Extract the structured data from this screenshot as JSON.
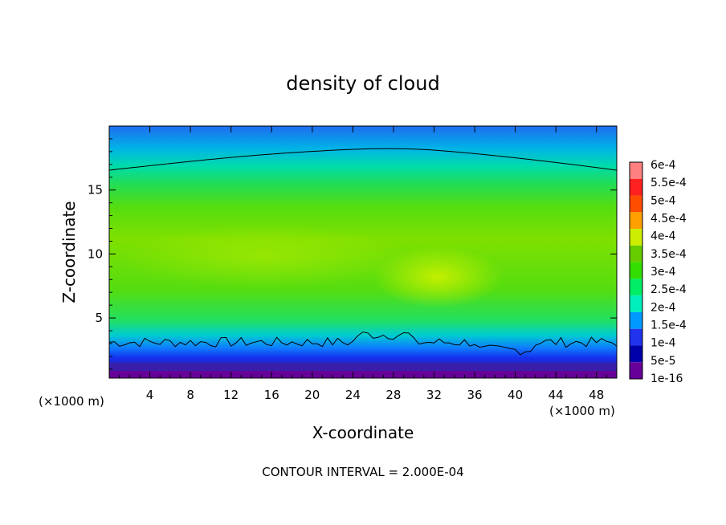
{
  "chart_data": {
    "type": "heatmap",
    "title": "density of cloud",
    "xlabel": "X-coordinate",
    "ylabel": "Z-coordinate",
    "x_unit_left": "(×1000 m)",
    "x_unit_right": "(×1000 m)",
    "footer": "CONTOUR INTERVAL = 2.000E-04",
    "xlim": [
      0,
      50
    ],
    "ylim": [
      0.3,
      20
    ],
    "x_ticks": [
      4,
      8,
      12,
      16,
      20,
      24,
      28,
      32,
      36,
      40,
      44,
      48
    ],
    "y_ticks": [
      5,
      10,
      15
    ],
    "colorbar": {
      "labels": [
        "6e-4",
        "5.5e-4",
        "5e-4",
        "4.5e-4",
        "4e-4",
        "3.5e-4",
        "3e-4",
        "2.5e-4",
        "2e-4",
        "1.5e-4",
        "1e-4",
        "5e-5",
        "1e-16"
      ],
      "colors": [
        "#ff8080",
        "#ff2020",
        "#ff4d00",
        "#ffa000",
        "#ccee00",
        "#66cc00",
        "#33dd00",
        "#00ee66",
        "#00eebb",
        "#0099ff",
        "#2233ee",
        "#0000aa",
        "#660099"
      ]
    },
    "contour_levels": [
      0.0002
    ],
    "density_profile_z": [
      0.3,
      1.0,
      2.0,
      3.0,
      4.0,
      6.0,
      10.0,
      14.0,
      16.5,
      18.0,
      19.5
    ],
    "density_profile_value": [
      1e-16,
      5e-05,
      0.0001,
      0.0002,
      0.00026,
      0.0003,
      0.00033,
      0.0003,
      0.0002,
      0.00015,
      0.00012
    ]
  }
}
